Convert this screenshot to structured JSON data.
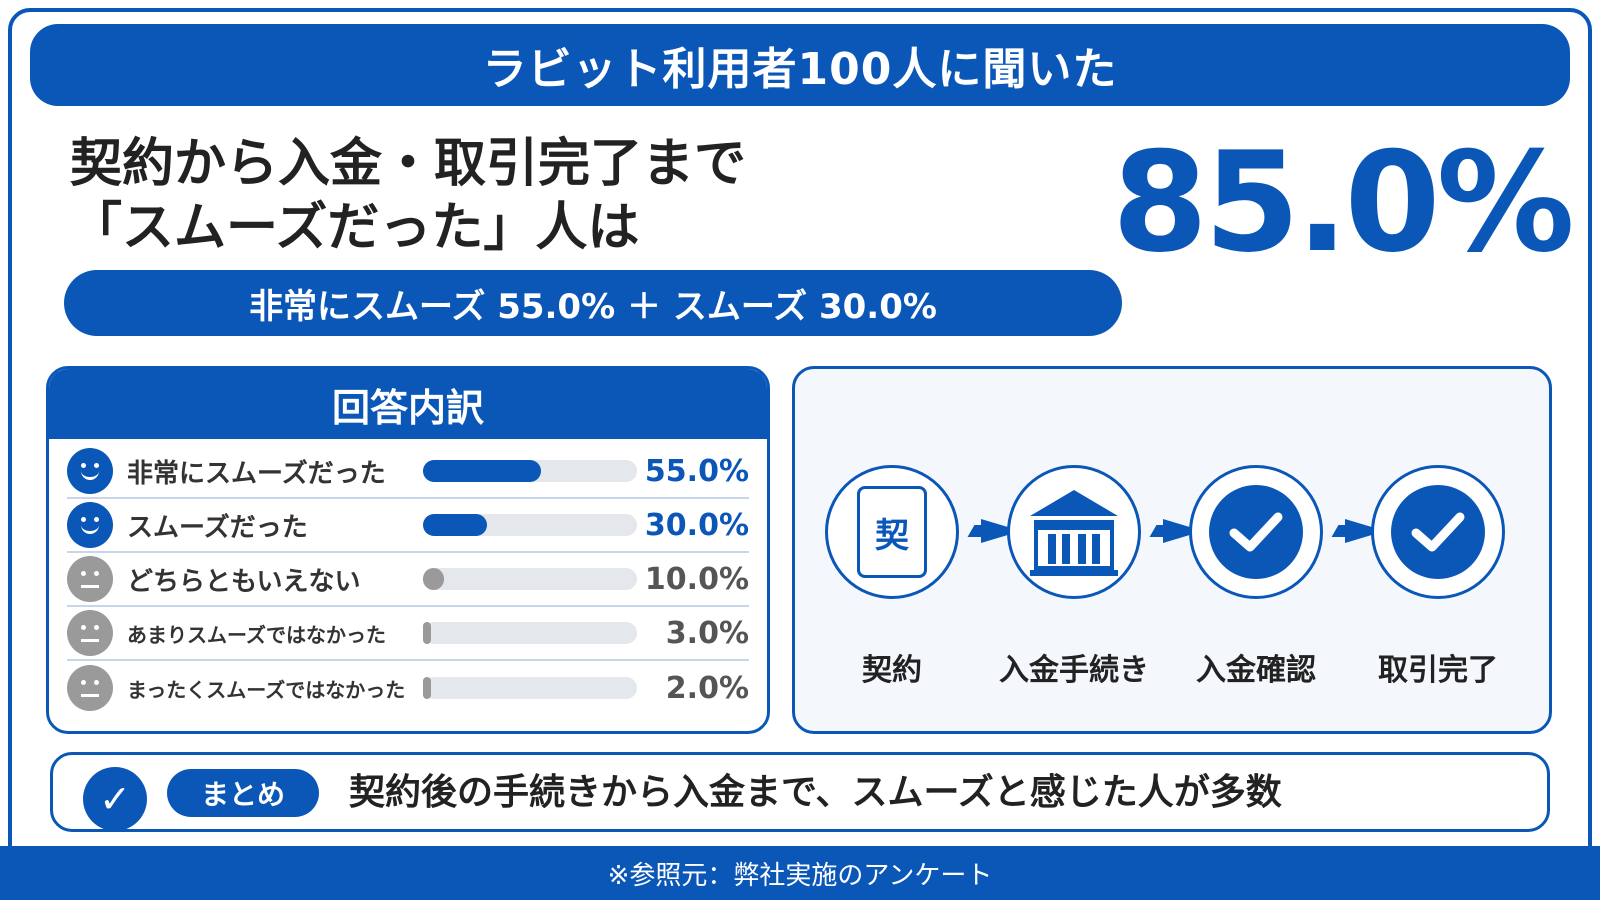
{
  "banner": {
    "title": "ラビット利用者100人に聞いた"
  },
  "headline": {
    "line1": "契約から入金・取引完了まで",
    "line2": "「スムーズだった」人は",
    "stat": "85.0%",
    "sub": "非常にスムーズ 55.0% ＋ スムーズ 30.0%"
  },
  "breakdown": {
    "title": "回答内訳",
    "rows": [
      {
        "label": "非常にスムーズだった",
        "value": "55.0%",
        "percent": 55.0,
        "face": "happy"
      },
      {
        "label": "スムーズだった",
        "value": "30.0%",
        "percent": 30.0,
        "face": "happy"
      },
      {
        "label": "どちらともいえない",
        "value": "10.0%",
        "percent": 10.0,
        "face": "neutral"
      },
      {
        "label": "あまりスムーズではなかった",
        "value": "3.0%",
        "percent": 3.0,
        "face": "neutral"
      },
      {
        "label": "まったくスムーズではなかった",
        "value": "2.0%",
        "percent": 2.0,
        "face": "neutral"
      }
    ]
  },
  "process": {
    "doc_glyph": "契",
    "steps": [
      {
        "label": "契約",
        "icon": "contract-document-icon"
      },
      {
        "label": "入金手続き",
        "icon": "bank-icon"
      },
      {
        "label": "入金確認",
        "icon": "check-circle-icon"
      },
      {
        "label": "取引完了",
        "icon": "check-circle-icon"
      }
    ]
  },
  "summary": {
    "check_glyph": "✓",
    "badge": "まとめ",
    "text": "契約後の手続きから入金まで、スムーズと感じた人が多数"
  },
  "footer": {
    "source": "※参照元：弊社実施のアンケート"
  },
  "colors": {
    "accent": "#0b57b8",
    "neutral": "#9a9a9a",
    "track": "#e4e7ec"
  }
}
